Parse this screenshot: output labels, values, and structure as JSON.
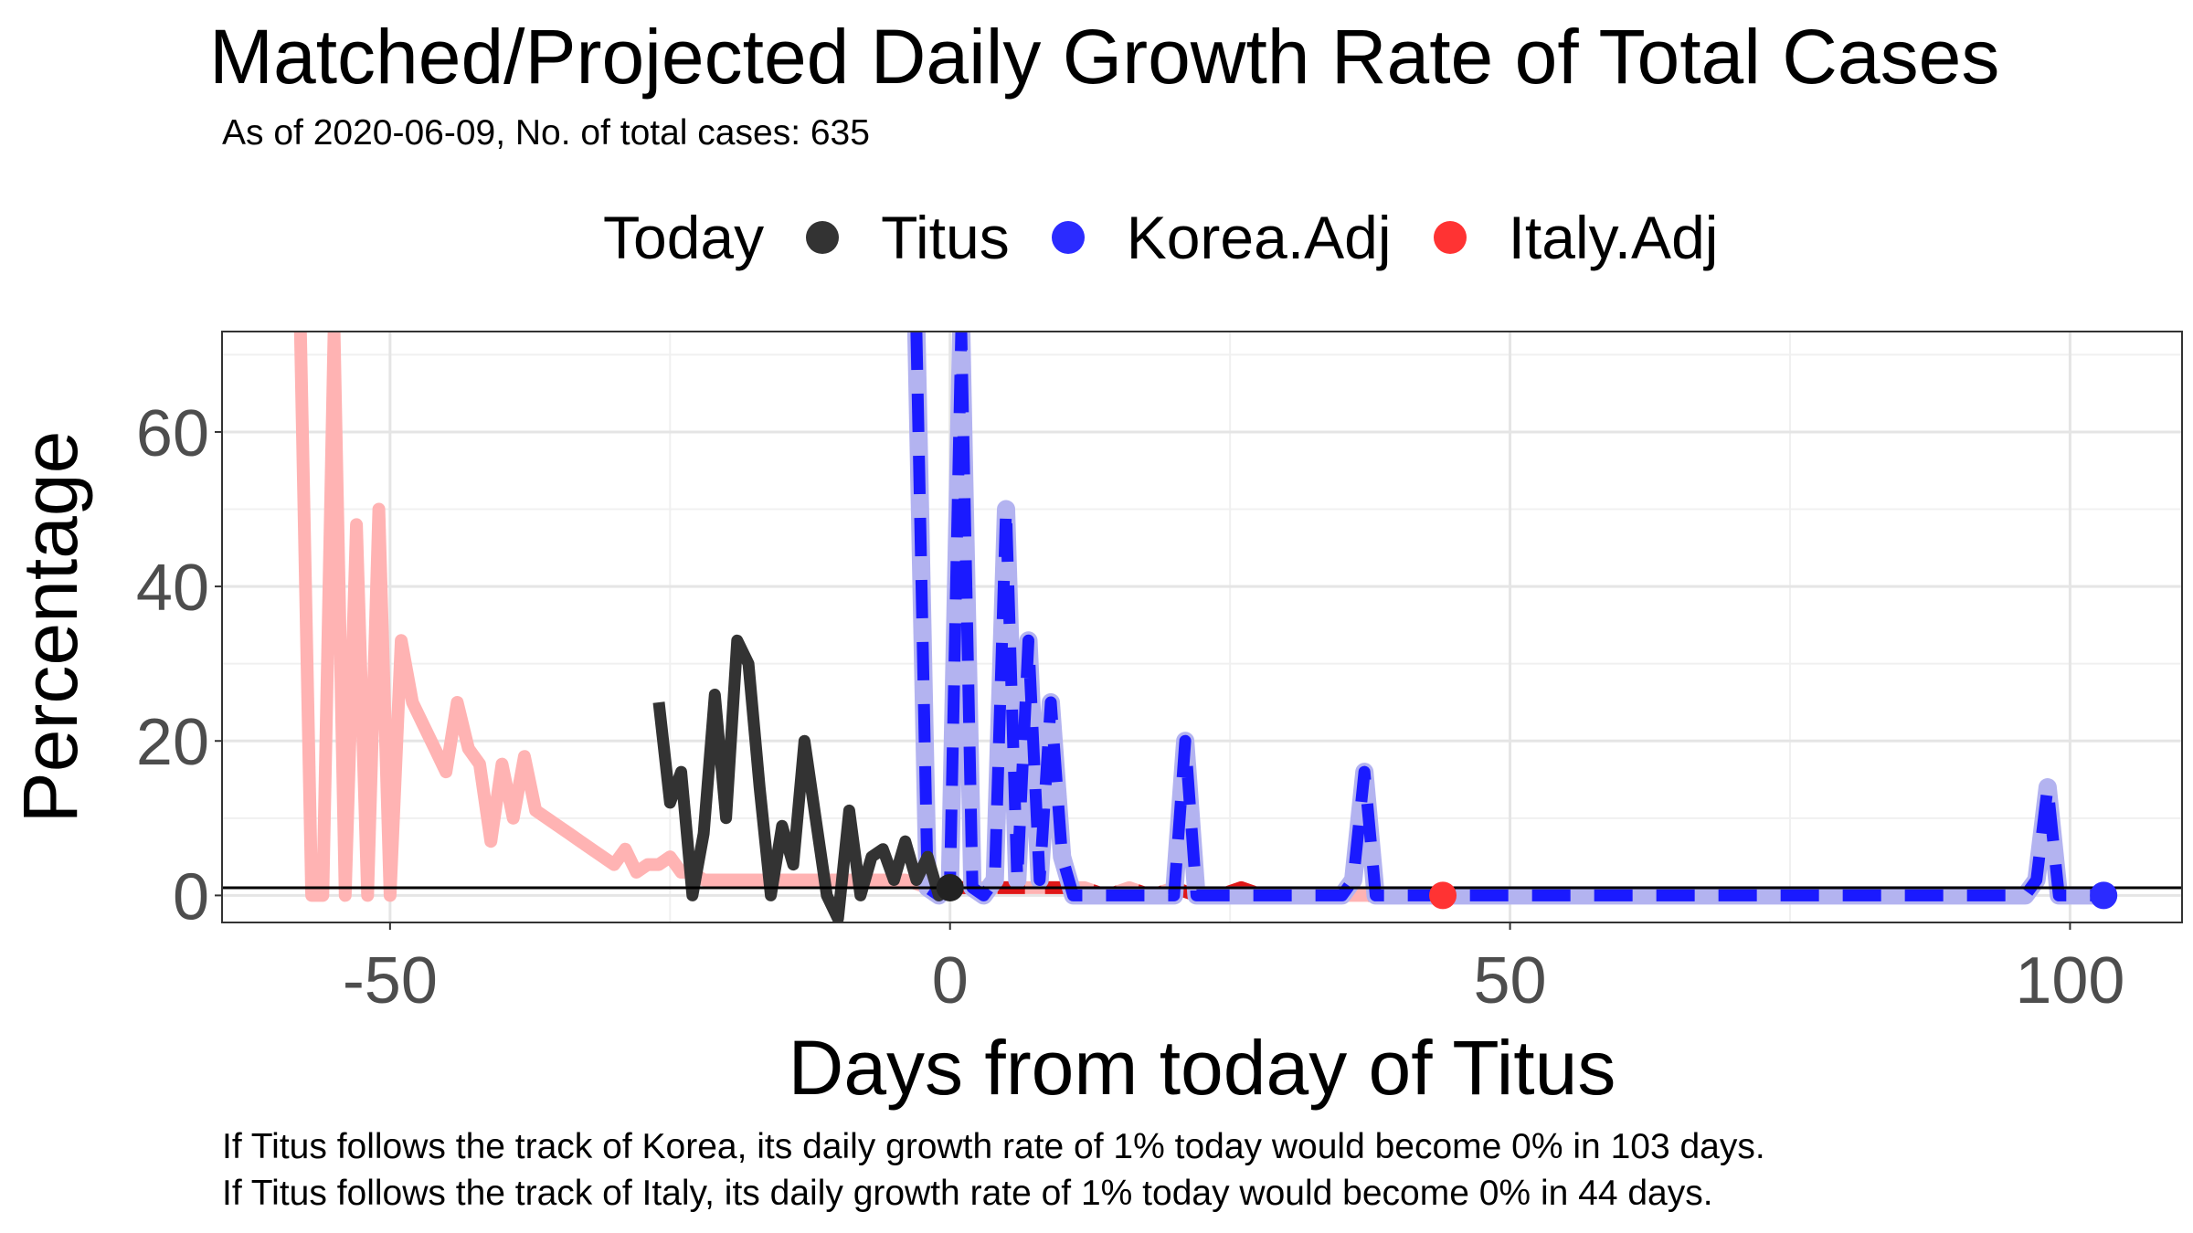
{
  "chart_data": {
    "type": "line",
    "title": "Matched/Projected Daily Growth Rate of Total Cases",
    "subtitle": "As of 2020-06-09, No. of total cases: 635",
    "xlabel": "Days from today of Titus",
    "ylabel": "Percentage",
    "xlim": [
      -65,
      110
    ],
    "ylim": [
      -3.5,
      73
    ],
    "x_ticks": [
      -50,
      0,
      50,
      100
    ],
    "y_ticks": [
      0,
      20,
      40,
      60
    ],
    "reference_line_y": 1,
    "legend": {
      "title": "Today",
      "position": "top",
      "entries": [
        {
          "label": "Titus",
          "color": "#333333"
        },
        {
          "label": "Korea.Adj",
          "color": "#2b2bff"
        },
        {
          "label": "Italy.Adj",
          "color": "#ff3333"
        }
      ]
    },
    "series": [
      {
        "name": "Titus",
        "color": "#333333",
        "x": [
          -26,
          -25,
          -24,
          -23,
          -22,
          -21,
          -20,
          -19,
          -18,
          -17,
          -16,
          -15,
          -14,
          -13,
          -12,
          -11,
          -10,
          -9,
          -8,
          -7,
          -6,
          -5,
          -4,
          -3,
          -2,
          -1,
          0
        ],
        "y": [
          25,
          12,
          16,
          0,
          8,
          26,
          10,
          33,
          30,
          14,
          0,
          9,
          4,
          20,
          10,
          0,
          -3,
          11,
          0,
          5,
          6,
          2,
          7,
          2,
          5,
          0,
          1
        ]
      },
      {
        "name": "Korea.Adj",
        "color": "#2b2bff",
        "x": [
          -3,
          -2,
          -1,
          0,
          1,
          2,
          3,
          4,
          5,
          6,
          7,
          8,
          9,
          10,
          11,
          12,
          13,
          14,
          15,
          16,
          17,
          18,
          19,
          20,
          21,
          22,
          23,
          24,
          25,
          26,
          27,
          28,
          29,
          30,
          31,
          32,
          33,
          34,
          35,
          36,
          37,
          38,
          39,
          40,
          45,
          50,
          60,
          70,
          80,
          90,
          96,
          97,
          98,
          99,
          100,
          101,
          102,
          103
        ],
        "y": [
          73,
          1,
          0,
          2,
          73,
          1,
          0,
          2,
          50,
          2,
          33,
          2,
          25,
          5,
          0,
          0,
          0,
          0,
          0,
          0,
          0,
          0,
          0,
          0,
          20,
          0,
          0,
          0,
          0,
          0,
          0,
          0,
          0,
          0,
          0,
          0,
          0,
          0,
          0,
          2,
          16,
          0,
          0,
          0,
          0,
          0,
          0,
          0,
          0,
          0,
          0,
          2,
          14,
          0,
          0,
          0,
          0,
          0
        ]
      },
      {
        "name": "Italy.Adj",
        "color": "#ff3333",
        "x": [
          -58,
          -57,
          -56,
          -55,
          -54,
          -53,
          -52,
          -51,
          -50,
          -49,
          -48,
          -47,
          -46,
          -45,
          -44,
          -43,
          -42,
          -41,
          -40,
          -39,
          -38,
          -37,
          -36,
          -35,
          -34,
          -33,
          -32,
          -31,
          -30,
          -29,
          -28,
          -27,
          -26,
          -25,
          -24,
          -23,
          -22,
          -21,
          -20,
          -18,
          -16,
          -14,
          -12,
          -10,
          -8,
          -6,
          -4,
          -2,
          0,
          2,
          4,
          6,
          8,
          10,
          12,
          14,
          16,
          18,
          20,
          22,
          24,
          26,
          28,
          30,
          32,
          34,
          36,
          38,
          40,
          42,
          44
        ],
        "y": [
          73,
          0,
          0,
          73,
          0,
          48,
          0,
          50,
          0,
          33,
          25,
          22,
          19,
          16,
          25,
          19,
          17,
          7,
          17,
          10,
          18,
          11,
          10,
          9,
          8,
          7,
          6,
          5,
          4,
          6,
          3,
          4,
          4,
          5,
          3,
          3,
          2,
          2,
          2,
          2,
          2,
          2,
          2,
          2,
          2,
          2,
          2,
          1,
          1,
          1,
          1,
          1,
          1,
          1,
          1,
          0,
          1,
          0,
          1,
          0,
          0,
          1,
          0,
          0,
          0,
          0,
          0,
          0,
          0,
          0,
          0
        ]
      }
    ],
    "today_points": [
      {
        "series": "Titus",
        "x": 0,
        "y": 1
      },
      {
        "series": "Korea.Adj",
        "x": 103,
        "y": 0
      },
      {
        "series": "Italy.Adj",
        "x": 44,
        "y": 0
      }
    ]
  },
  "captions": {
    "korea": "If Titus follows the track of Korea, its daily growth rate of 1% today would become 0% in 103 days.",
    "italy": "If Titus follows the track of Italy, its daily growth rate of 1% today would become 0% in 44 days."
  }
}
